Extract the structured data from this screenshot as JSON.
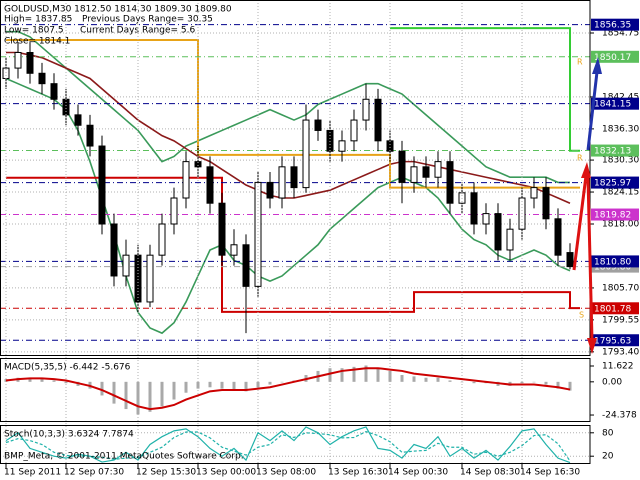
{
  "chart_data": [
    {
      "type": "candlestick",
      "title": "GOLDUSD,M30  1812.50 1814.30 1809.30 1809.80",
      "info": [
        "High= 1837.85",
        "Previous Days Range= 30.35",
        "Low= 1807.5",
        "Current Days Range= 5.6",
        "Close= 1814.1"
      ],
      "categories": [
        "11 Sep 2011",
        null,
        null,
        null,
        null,
        "12 Sep 07:30",
        null,
        null,
        null,
        null,
        null,
        "12 Sep 15:30",
        null,
        null,
        null,
        null,
        "13 Sep 00:00",
        null,
        null,
        null,
        null,
        "13 Sep 08:00",
        null,
        null,
        null,
        null,
        null,
        "13 Sep 16:30",
        null,
        null,
        null,
        null,
        "14 Sep 00:30",
        null,
        null,
        null,
        null,
        null,
        "14 Sep 08:30",
        null,
        null,
        null,
        null,
        "14 Sep 16:30",
        null,
        null,
        null,
        null
      ],
      "open": [
        1846,
        1848,
        1851,
        1847,
        1845,
        1842,
        1839,
        1837,
        1833,
        1818,
        1808,
        1812,
        1803,
        1812,
        1818,
        1823,
        1830,
        1829,
        1822,
        1812,
        1814,
        1806,
        1826,
        1823,
        1829,
        1825,
        1838,
        1836,
        1832,
        1834,
        1838,
        1842,
        1834,
        1832,
        1826,
        1829,
        1827,
        1830,
        1822,
        1824,
        1818,
        1820,
        1813,
        1817,
        1823,
        1825,
        1819,
        1812.5
      ],
      "high": [
        1850,
        1853,
        1853,
        1849,
        1847,
        1844,
        1841,
        1839,
        1835,
        1820,
        1815,
        1814,
        1814,
        1820,
        1825,
        1832,
        1833,
        1831,
        1824,
        1817,
        1816,
        1828,
        1828,
        1831,
        1831,
        1841,
        1840,
        1838,
        1836,
        1840,
        1845,
        1844,
        1836,
        1834,
        1831,
        1831,
        1832,
        1832,
        1826,
        1826,
        1822,
        1822,
        1819,
        1825,
        1827,
        1827,
        1821,
        1814.3
      ],
      "low": [
        1844,
        1846,
        1845,
        1843,
        1840,
        1837,
        1835,
        1831,
        1816,
        1806,
        1806,
        1801,
        1802,
        1810,
        1816,
        1821,
        1827,
        1820,
        1810,
        1810,
        1797,
        1804,
        1821,
        1821,
        1823,
        1824,
        1834,
        1830,
        1830,
        1832,
        1836,
        1832,
        1830,
        1822,
        1824,
        1825,
        1825,
        1820,
        1820,
        1816,
        1816,
        1811,
        1811,
        1815,
        1821,
        1817,
        1810,
        1809.3
      ],
      "close": [
        1848,
        1851,
        1847,
        1845,
        1842,
        1839,
        1837,
        1833,
        1818,
        1808,
        1812,
        1803,
        1812,
        1818,
        1823,
        1830,
        1829,
        1822,
        1812,
        1814,
        1806,
        1826,
        1823,
        1829,
        1825,
        1838,
        1836,
        1832,
        1834,
        1838,
        1842,
        1834,
        1832,
        1826,
        1829,
        1827,
        1830,
        1822,
        1824,
        1818,
        1820,
        1813,
        1817,
        1823,
        1825,
        1819,
        1812,
        1809.8
      ],
      "up_color": "#ffffff",
      "down_color": "#000000",
      "overlays": [
        {
          "style": "line",
          "color": "#3a9a5a",
          "values": [
            1855,
            1855,
            1854,
            1852,
            1850,
            1848,
            1846,
            1844,
            1842,
            1840,
            1838,
            1836,
            1833,
            1830,
            1831,
            1833,
            1834,
            1835,
            1836,
            1837,
            1838,
            1839,
            1840,
            1839,
            1838,
            1839,
            1841,
            1842,
            1843,
            1844,
            1845,
            1845,
            1844,
            1843,
            1841,
            1839,
            1837,
            1835,
            1833,
            1831,
            1829,
            1828,
            1827,
            1827,
            1827,
            1827,
            1826,
            1826
          ]
        },
        {
          "style": "line",
          "color": "#3a9a5a",
          "values": [
            1846,
            1845,
            1844,
            1843,
            1842,
            1840,
            1836,
            1830,
            1823,
            1816,
            1808,
            1801,
            1798,
            1797,
            1799,
            1803,
            1808,
            1813,
            1814,
            1811,
            1810,
            1808,
            1807,
            1808,
            1810,
            1812,
            1814,
            1817,
            1819,
            1821,
            1823,
            1825,
            1826,
            1827,
            1826,
            1825,
            1823,
            1820,
            1817,
            1815,
            1814,
            1812,
            1811,
            1812,
            1813,
            1812,
            1810,
            1809
          ]
        },
        {
          "style": "line",
          "color": "#8b1a1a",
          "values": [
            1851,
            1851,
            1850.5,
            1850,
            1849,
            1848,
            1847,
            1846,
            1844,
            1842,
            1840,
            1838,
            1836.5,
            1835,
            1834,
            1832.5,
            1831,
            1830,
            1828.5,
            1827,
            1825.5,
            1824.5,
            1823.5,
            1823,
            1823,
            1823.5,
            1824,
            1824.5,
            1825.5,
            1826.5,
            1827.5,
            1828.5,
            1829.5,
            1830,
            1830,
            1829.5,
            1829,
            1828.5,
            1828,
            1827.5,
            1827,
            1826.5,
            1826,
            1825.5,
            1825,
            1824,
            1823,
            1822
          ]
        },
        {
          "style": "step",
          "color": "#e8a317",
          "values": [
            1853.4,
            1853.4,
            1853.4,
            1853.4,
            1853.4,
            1853.4,
            1853.4,
            1853.4,
            1853.4,
            1853.4,
            1853.4,
            1853.4,
            1853.4,
            1853.4,
            1853.4,
            1853.4,
            1831.3,
            1831.3,
            1831.3,
            1831.3,
            1831.3,
            1831.3,
            1831.3,
            1831.3,
            1831.3,
            1831.3,
            1831.3,
            1831.3,
            1831.3,
            1831.3,
            1831.3,
            1831.3,
            1825,
            1825,
            1825,
            1825,
            1825,
            1825,
            1825,
            1825,
            1825,
            1825,
            1825,
            1825,
            1825,
            1825,
            1825,
            1825
          ]
        },
        {
          "style": "step",
          "color": "#cc0000",
          "values": [
            1826.9,
            1826.9,
            1826.9,
            1826.9,
            1826.9,
            1826.9,
            1826.9,
            1826.9,
            1826.9,
            1826.9,
            1826.9,
            1826.9,
            1826.9,
            1826.9,
            1826.9,
            1826.9,
            1826.9,
            1826.9,
            1801.1,
            1801.1,
            1801.1,
            1801.1,
            1801.1,
            1801.1,
            1801.1,
            1801.1,
            1801.1,
            1801.1,
            1801.1,
            1801.1,
            1801.1,
            1801.1,
            1801.1,
            1801.1,
            1804.9,
            1804.9,
            1804.9,
            1804.9,
            1804.9,
            1804.9,
            1804.9,
            1804.9,
            1804.9,
            1804.9,
            1804.9,
            1804.9,
            1804.9,
            1801.8
          ]
        },
        {
          "style": "step",
          "color": "#33cc33",
          "values": [
            null,
            null,
            null,
            null,
            null,
            null,
            null,
            null,
            null,
            null,
            null,
            null,
            null,
            null,
            null,
            null,
            null,
            null,
            null,
            null,
            null,
            null,
            null,
            null,
            null,
            null,
            null,
            null,
            null,
            null,
            null,
            null,
            1855.7,
            1855.7,
            1855.7,
            1855.7,
            1855.7,
            1855.7,
            1855.7,
            1855.7,
            1855.7,
            1855.7,
            1855.7,
            1855.7,
            1855.7,
            1855.7,
            1855.7,
            1832.1
          ]
        }
      ],
      "levels": [
        {
          "value": 1856.35,
          "color": "#00008b"
        },
        {
          "value": 1850.17,
          "color": "#5cbf5c"
        },
        {
          "value": 1841.15,
          "color": "#00008b"
        },
        {
          "value": 1832.13,
          "color": "#5cbf5c"
        },
        {
          "value": 1825.97,
          "color": "#00008b"
        },
        {
          "value": 1819.82,
          "color": "#cc33cc"
        },
        {
          "value": 1809.8,
          "label": "1809.80",
          "color": "#a0a0a0"
        },
        {
          "value": 1810.8,
          "label": "1810.80",
          "color": "#00008b"
        },
        {
          "value": 1801.78,
          "color": "#cc0000"
        },
        {
          "value": 1795.63,
          "color": "#00008b"
        }
      ],
      "level_marks": [
        "R",
        "R",
        "S"
      ],
      "ylim": [
        1792.6,
        1861.1
      ],
      "yticks": [
        1854.75,
        1842.45,
        {
          "value": 1836.3,
          "label": "1836.30"
        },
        {
          "value": 1830.3,
          "label": "1830.30"
        },
        1824.15,
        {
          "value": 1818,
          "label": "1818.00"
        },
        {
          "value": 1805.7,
          "label": "1805.70"
        },
        1799.55,
        {
          "value": 1793.4,
          "label": "1793.40"
        }
      ],
      "grid": true
    },
    {
      "type": "bar",
      "title": "MACD(5,35,5) -6.442 -5.676",
      "values": [
        2,
        3,
        3,
        2,
        1,
        -1,
        -3,
        -5,
        -10,
        -16,
        -20,
        -24,
        -22,
        -18,
        -13,
        -8,
        -5,
        -4,
        -5,
        -6,
        -7,
        -4,
        -2,
        0,
        1,
        5,
        8,
        10,
        10,
        11,
        12,
        10,
        8,
        5,
        4,
        3,
        3,
        1,
        0,
        -1,
        -1,
        -3,
        -3,
        -1,
        0,
        -2,
        -5,
        -6.442
      ],
      "color": "#a9a9a9",
      "series": [
        {
          "color": "#cc0000",
          "values": [
            1,
            2,
            2.5,
            2.5,
            2,
            1,
            -1,
            -3,
            -6,
            -10,
            -14,
            -18,
            -20,
            -19,
            -17,
            -13,
            -10,
            -7,
            -6,
            -6,
            -6,
            -5,
            -4,
            -2,
            0,
            2,
            4,
            6,
            8,
            9,
            10,
            10,
            9,
            8,
            6,
            5,
            4,
            3,
            2,
            1,
            0,
            -1,
            -2,
            -2,
            -2,
            -3,
            -4,
            -5.676
          ]
        }
      ],
      "ylim": [
        -29.5,
        17.5
      ],
      "yticks": [
        11.622,
        {
          "value": 0,
          "label": "0.00"
        },
        -24.378
      ],
      "grid": false
    },
    {
      "type": "line",
      "title": "Stoch(10,3,3) 3.6324 7.7874",
      "annotation": "BMP_Meta, © 2001-2011 MetaQuotes Software Corp.",
      "series": [
        {
          "color": "#20b2aa",
          "dashed": false,
          "values": [
            60,
            80,
            40,
            30,
            20,
            15,
            25,
            20,
            5,
            10,
            30,
            10,
            50,
            70,
            85,
            90,
            70,
            40,
            20,
            40,
            10,
            80,
            60,
            85,
            60,
            95,
            80,
            50,
            70,
            85,
            95,
            40,
            35,
            15,
            50,
            40,
            70,
            20,
            40,
            15,
            35,
            10,
            45,
            85,
            90,
            50,
            15,
            3.6324
          ]
        },
        {
          "color": "#20b2aa",
          "dashed": true,
          "values": [
            55,
            65,
            60,
            50,
            30,
            22,
            20,
            20,
            17,
            12,
            15,
            17,
            30,
            43,
            68,
            82,
            82,
            67,
            43,
            33,
            23,
            43,
            50,
            75,
            68,
            80,
            78,
            75,
            67,
            68,
            83,
            73,
            57,
            30,
            33,
            35,
            53,
            43,
            43,
            25,
            30,
            20,
            30,
            47,
            73,
            75,
            52,
            7.7874
          ]
        }
      ],
      "ylim": [
        0,
        100
      ],
      "yticks": [
        80,
        20
      ],
      "grid": true
    }
  ]
}
